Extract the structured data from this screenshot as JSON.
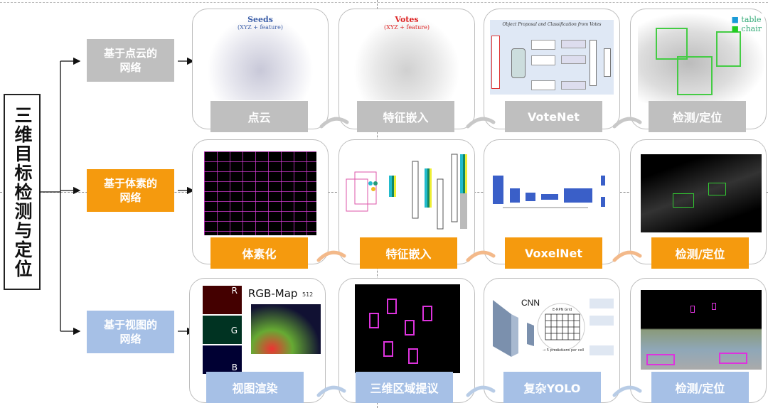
{
  "title": "三维目标检测与定位",
  "colors": {
    "point": "#bfbfbf",
    "voxel": "#f59a0e",
    "view": "#a6c0e6"
  },
  "rows": [
    {
      "category": "基于点云的网络",
      "steps": [
        "点云",
        "特征嵌入",
        "VoteNet",
        "检测/定位"
      ]
    },
    {
      "category": "基于体素的网络",
      "steps": [
        "体素化",
        "特征嵌入",
        "VoxelNet",
        "检测/定位"
      ]
    },
    {
      "category": "基于视图的网络",
      "steps": [
        "视图渲染",
        "三维区域提议",
        "复杂YOLO",
        "检测/定位"
      ]
    }
  ],
  "figures": {
    "seeds": "Seeds",
    "seeds_sub": "(XYZ + feature)",
    "votes": "Votes",
    "votes_sub": "(XYZ + feature)",
    "votenet_caption": "Object Proposal and Classification from Votes",
    "legend_table": "table",
    "legend_chair": "chair",
    "rgb_map": "RGB-Map",
    "rgb_512": "512",
    "r": "R",
    "g": "G",
    "b": "B",
    "cnn": "CNN",
    "erpn": "E-RPN Grid",
    "pred": "→ 5 predictions per cell"
  }
}
